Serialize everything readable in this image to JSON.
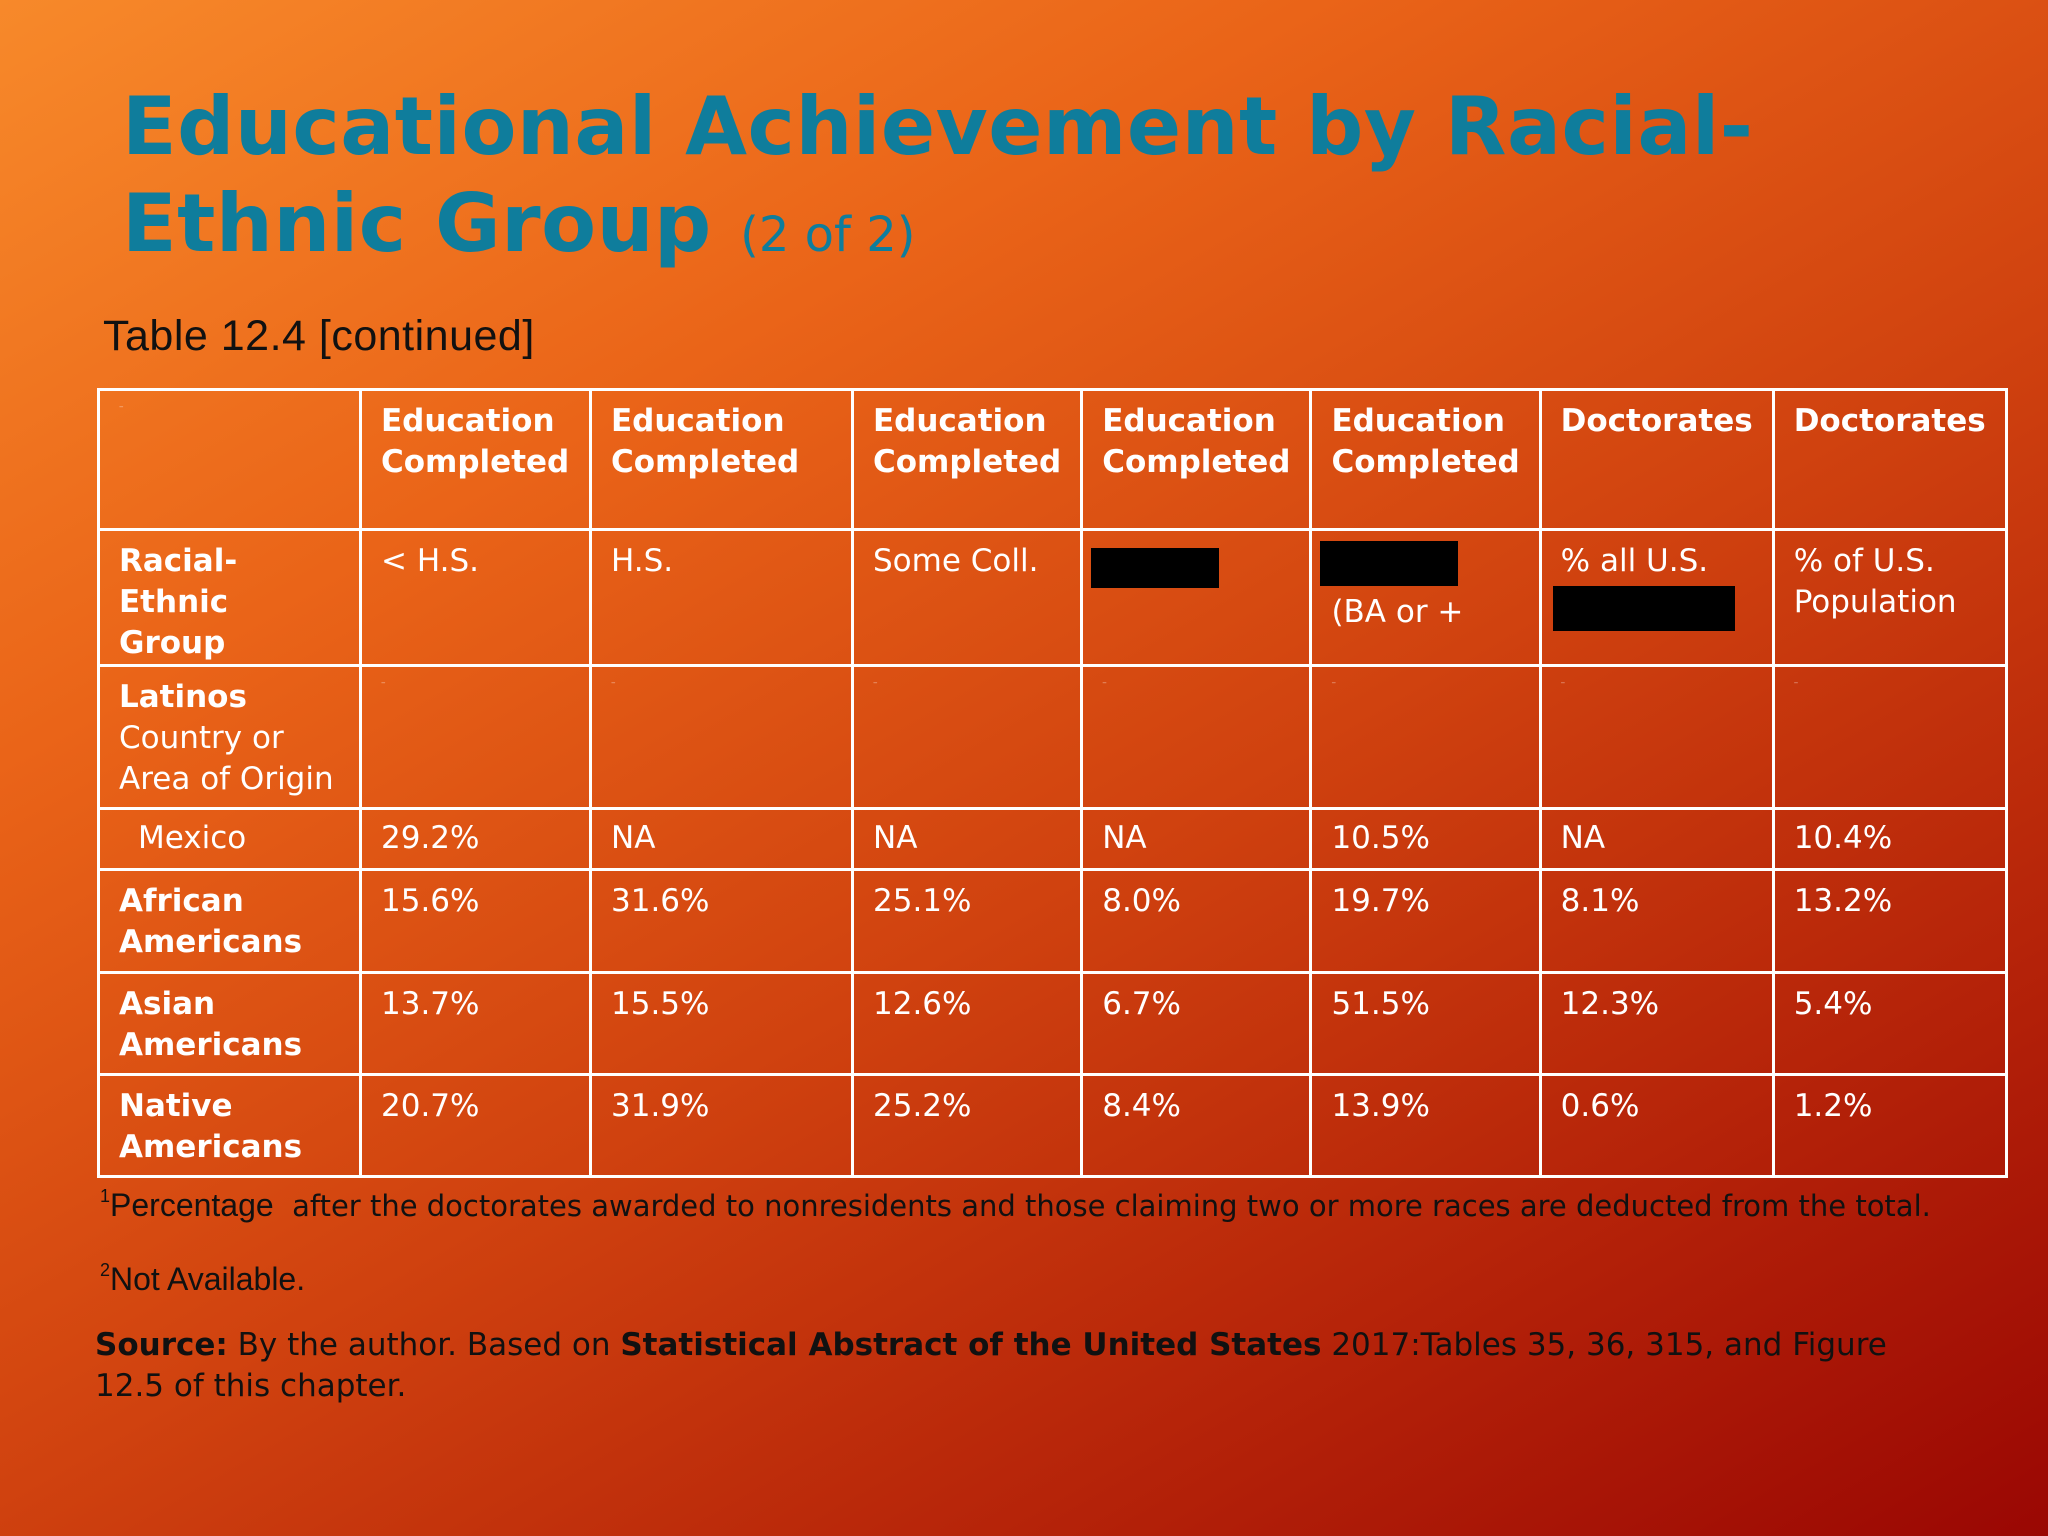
{
  "slide": {
    "title_main": "Educational Achievement by Racial-Ethnic Group",
    "title_sub": "(2 of 2)",
    "table_caption": "Table 12.4 [continued]"
  },
  "table": {
    "group_headers": [
      "",
      "Education Completed",
      "Education Completed",
      "Education Completed",
      "Education Completed",
      "Education Completed",
      "Doctorates",
      "Doctorates"
    ],
    "sub_headers": {
      "row_label": "Racial-Ethnic Group",
      "c1": "< H.S.",
      "c2": "H.S.",
      "c3": "Some Coll.",
      "c5": "(BA or +",
      "c6": "% all U.S.",
      "c7": "% of U.S. Population"
    },
    "latinos_label": "Latinos",
    "latinos_sublabel": "Country or Area of Origin",
    "rows": [
      {
        "label": "Mexico",
        "values": [
          "29.2%",
          "NA",
          "NA",
          "NA",
          "10.5%",
          "NA",
          "10.4%"
        ]
      },
      {
        "label": "African Americans",
        "values": [
          "15.6%",
          "31.6%",
          "25.1%",
          "8.0%",
          "19.7%",
          "8.1%",
          "13.2%"
        ]
      },
      {
        "label": "Asian Americans",
        "values": [
          "13.7%",
          "15.5%",
          "12.6%",
          "6.7%",
          "51.5%",
          "12.3%",
          "5.4%"
        ]
      },
      {
        "label": "Native Americans",
        "values": [
          "20.7%",
          "31.9%",
          "25.2%",
          "8.4%",
          "13.9%",
          "0.6%",
          "1.2%"
        ]
      }
    ]
  },
  "footnotes": {
    "note1_mark": "1",
    "note1_lead": "Percentage",
    "note1_text": "after the doctorates awarded to nonresidents and those claiming two or more races are deducted from the total.",
    "note2_mark": "2",
    "note2_text": "Not Available."
  },
  "source": {
    "label": "Source:",
    "text1": "By the author. Based on",
    "bold_title": "Statistical Abstract of the United States",
    "text2": "2017:Tables 35, 36, 315, and Figure 12.5 of this chapter."
  },
  "colors": {
    "title": "#0f7d9c",
    "table_text": "#ffffff",
    "body_text": "#111111",
    "background_start": "#f7892a",
    "background_end": "#9a0703"
  }
}
